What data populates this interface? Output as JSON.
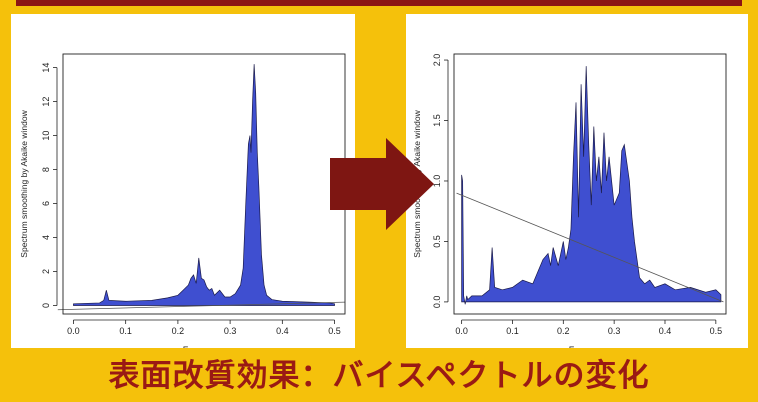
{
  "caption": "表面改質効果：バイスペクトルの変化",
  "colors": {
    "background": "#f5c10b",
    "fill": "#3f4fd0",
    "arrow": "#7e1612",
    "caption": "#9a1a14",
    "top_bar": "#8c1414"
  },
  "arrow_icon": "right-arrow-icon",
  "chart_data": [
    {
      "type": "area",
      "xlabel": "Frequency",
      "ylabel": "Spectrum smoothing by Akaike window",
      "xlim": [
        -0.02,
        0.52
      ],
      "ylim": [
        -0.5,
        14.8
      ],
      "xticks": [
        0.0,
        0.1,
        0.2,
        0.3,
        0.4,
        0.5
      ],
      "xtick_labels": [
        "0.0",
        "0.1",
        "0.2",
        "0.3",
        "0.4",
        "0.5"
      ],
      "yticks": [
        0,
        2,
        4,
        6,
        8,
        10,
        12,
        14
      ],
      "ytick_labels": [
        "0",
        "2",
        "4",
        "6",
        "8",
        "10",
        "12",
        "14"
      ],
      "x": [
        0.0,
        0.05,
        0.058,
        0.063,
        0.068,
        0.1,
        0.15,
        0.18,
        0.2,
        0.21,
        0.22,
        0.225,
        0.23,
        0.235,
        0.24,
        0.245,
        0.25,
        0.255,
        0.26,
        0.265,
        0.27,
        0.28,
        0.29,
        0.3,
        0.31,
        0.32,
        0.325,
        0.33,
        0.335,
        0.338,
        0.34,
        0.343,
        0.346,
        0.349,
        0.352,
        0.355,
        0.36,
        0.365,
        0.37,
        0.38,
        0.4,
        0.45,
        0.49,
        0.5
      ],
      "y": [
        0.1,
        0.15,
        0.3,
        0.9,
        0.3,
        0.25,
        0.3,
        0.45,
        0.6,
        0.9,
        1.2,
        1.6,
        1.8,
        1.3,
        2.8,
        1.6,
        1.5,
        1.1,
        0.9,
        1.0,
        0.6,
        0.9,
        0.5,
        0.5,
        0.7,
        1.2,
        2.2,
        6.0,
        9.5,
        10.0,
        9.0,
        12.0,
        14.2,
        12.5,
        9.0,
        7.0,
        3.0,
        1.2,
        0.6,
        0.35,
        0.25,
        0.2,
        0.15,
        0.1
      ],
      "grid": false
    },
    {
      "type": "area",
      "xlabel": "Frequency",
      "ylabel": "Spectrum smoothing by Akaike window",
      "xlim": [
        -0.015,
        0.52
      ],
      "ylim": [
        -0.1,
        2.05
      ],
      "xticks": [
        0.0,
        0.1,
        0.2,
        0.3,
        0.4,
        0.5
      ],
      "xtick_labels": [
        "0.0",
        "0.1",
        "0.2",
        "0.3",
        "0.4",
        "0.5"
      ],
      "yticks": [
        0.0,
        0.5,
        1.0,
        1.5,
        2.0
      ],
      "ytick_labels": [
        "0.0",
        "0.5",
        "1.0",
        "1.5",
        "2.0"
      ],
      "x": [
        0.0,
        0.002,
        0.004,
        0.007,
        0.01,
        0.012,
        0.015,
        0.02,
        0.04,
        0.055,
        0.06,
        0.065,
        0.08,
        0.1,
        0.12,
        0.14,
        0.15,
        0.16,
        0.17,
        0.175,
        0.18,
        0.19,
        0.2,
        0.205,
        0.21,
        0.215,
        0.22,
        0.225,
        0.23,
        0.235,
        0.24,
        0.245,
        0.25,
        0.255,
        0.26,
        0.265,
        0.27,
        0.275,
        0.28,
        0.285,
        0.29,
        0.3,
        0.31,
        0.315,
        0.32,
        0.325,
        0.33,
        0.335,
        0.34,
        0.35,
        0.36,
        0.37,
        0.38,
        0.4,
        0.42,
        0.45,
        0.48,
        0.5,
        0.51
      ],
      "y": [
        1.05,
        1.0,
        0.05,
        -0.02,
        0.05,
        0.02,
        0.03,
        0.05,
        0.05,
        0.1,
        0.45,
        0.12,
        0.1,
        0.12,
        0.18,
        0.15,
        0.25,
        0.35,
        0.4,
        0.3,
        0.45,
        0.3,
        0.5,
        0.35,
        0.45,
        0.6,
        1.2,
        1.65,
        0.7,
        1.8,
        1.2,
        1.95,
        1.3,
        0.8,
        1.45,
        1.0,
        1.2,
        0.9,
        1.4,
        1.0,
        1.2,
        0.8,
        0.9,
        1.25,
        1.3,
        1.15,
        1.0,
        0.7,
        0.5,
        0.2,
        0.15,
        0.18,
        0.12,
        0.15,
        0.1,
        0.12,
        0.08,
        0.1,
        0.06
      ],
      "grid": false
    }
  ]
}
